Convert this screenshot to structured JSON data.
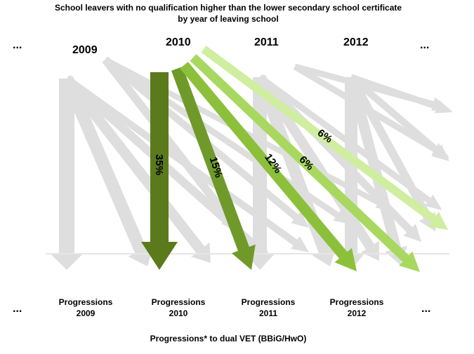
{
  "title": {
    "line1": "School leavers with no qualification  higher than the lower secondary school certificate",
    "line2": "by year of leaving school"
  },
  "years": [
    "2009",
    "2010",
    "2011",
    "2012"
  ],
  "ellipsis": "...",
  "progressions": [
    {
      "line1": "Progressions",
      "line2": "2009"
    },
    {
      "line1": "Progressions",
      "line2": "2010"
    },
    {
      "line1": "Progressions",
      "line2": "2011"
    },
    {
      "line1": "Progressions",
      "line2": "2012"
    }
  ],
  "footer": "Progressions* to dual VET (BBiG/HwO)",
  "arrows": [
    {
      "label": "35%",
      "color": "#5a7a1c"
    },
    {
      "label": "15%",
      "color": "#6f9a2a"
    },
    {
      "label": "12%",
      "color": "#8cc03a"
    },
    {
      "label": "6%",
      "color": "#a8d860"
    },
    {
      "label": "6%",
      "color": "#cfeea0"
    }
  ],
  "colors": {
    "ghost": "#d9d9d9",
    "baseline": "#bfbfbf"
  }
}
